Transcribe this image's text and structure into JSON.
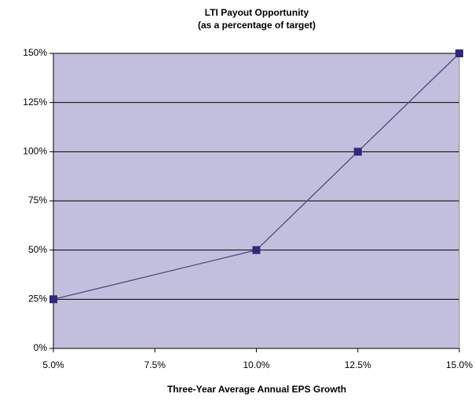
{
  "chart_data": {
    "type": "line",
    "title": "LTI Payout Opportunity",
    "subtitle": "(as a percentage of target)",
    "x_label": "Three-Year Average Annual EPS Growth",
    "x": [
      5,
      10,
      12.5,
      15
    ],
    "series": [
      {
        "name": "LTI Payout",
        "color": "#2e2a78",
        "values": [
          25,
          50,
          100,
          150
        ]
      }
    ],
    "xlim": [
      5,
      15
    ],
    "xticks": [
      {
        "value": 5,
        "label": "5.0%"
      },
      {
        "value": 7.5,
        "label": "7.5%"
      },
      {
        "value": 10,
        "label": "10.0%"
      },
      {
        "value": 12.5,
        "label": "12.5%"
      },
      {
        "value": 15,
        "label": "15.0%"
      }
    ],
    "ylim": [
      0,
      150
    ],
    "yticks": [
      {
        "value": 0,
        "label": "0%"
      },
      {
        "value": 25,
        "label": "25%"
      },
      {
        "value": 50,
        "label": "50%"
      },
      {
        "value": 75,
        "label": "75%"
      },
      {
        "value": 100,
        "label": "100%"
      },
      {
        "value": 125,
        "label": "125%"
      },
      {
        "value": 150,
        "label": "150%"
      }
    ],
    "grid": true
  }
}
